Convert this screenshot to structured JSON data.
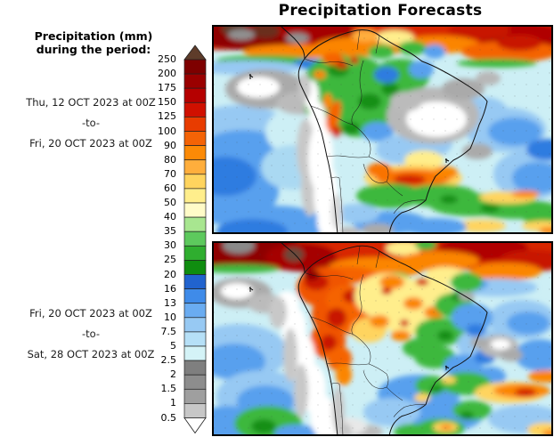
{
  "title": "Precipitation Forecasts",
  "legend": {
    "heading": [
      "Precipitation (mm)",
      "during the period:"
    ],
    "levels": [
      "250",
      "200",
      "175",
      "150",
      "125",
      "100",
      "90",
      "80",
      "70",
      "60",
      "50",
      "40",
      "35",
      "30",
      "25",
      "20",
      "16",
      "13",
      "10",
      "7.5",
      "5",
      "2.5",
      "2",
      "1.5",
      "1",
      "0.5"
    ],
    "band_colors": [
      "#5E3C2A",
      "#7E0000",
      "#9A0000",
      "#B50000",
      "#D01000",
      "#E83C00",
      "#F46306",
      "#FC8A06",
      "#FFAE3C",
      "#FFD45E",
      "#FFEE8C",
      "#FFFBC8",
      "#A8E690",
      "#5DC95D",
      "#2FAE2F",
      "#0F8D0F",
      "#2163CE",
      "#3F8BE9",
      "#6AACF1",
      "#97C9F3",
      "#B6E0F7",
      "#D4F3F7",
      "#7F7F7F",
      "#8D8D8D",
      "#9F9F9F",
      "#C7C7C7",
      "#FFFFFF"
    ]
  },
  "panels": [
    {
      "start": "Thu, 12 OCT 2023 at 00Z",
      "to": "-to-",
      "end": "Fri, 20 OCT 2023 at 00Z"
    },
    {
      "start": "Fri, 20 OCT 2023 at 00Z",
      "to": "-to-",
      "end": "Sat, 28 OCT 2023 at 00Z"
    }
  ],
  "chart_data": {
    "type": "heatmap",
    "title": "Precipitation Forecasts",
    "variable": "Precipitation (mm) during the period",
    "region": "South America and adjacent Pacific / Atlantic oceans",
    "colorbar": {
      "unit": "mm",
      "orientation": "vertical",
      "levels_mm": [
        0.5,
        1,
        1.5,
        2,
        2.5,
        5,
        7.5,
        10,
        13,
        16,
        20,
        25,
        30,
        35,
        40,
        50,
        60,
        70,
        80,
        90,
        100,
        125,
        150,
        175,
        200,
        250
      ],
      "band_colors_high_to_low": [
        "#5E3C2A",
        "#7E0000",
        "#9A0000",
        "#B50000",
        "#D01000",
        "#E83C00",
        "#F46306",
        "#FC8A06",
        "#FFAE3C",
        "#FFD45E",
        "#FFEE8C",
        "#FFFBC8",
        "#A8E690",
        "#5DC95D",
        "#2FAE2F",
        "#0F8D0F",
        "#2163CE",
        "#3F8BE9",
        "#6AACF1",
        "#97C9F3",
        "#B6E0F7",
        "#D4F3F7",
        "#7F7F7F",
        "#8D8D8D",
        "#9F9F9F",
        "#C7C7C7",
        "#FFFFFF"
      ],
      "open_ended_top": "above 250 mm (dark brown triangle)",
      "open_ended_bottom": "below 0.5 mm (white triangle)"
    },
    "panels": [
      {
        "period_start": "Thu, 12 OCT 2023 at 00Z",
        "period_end": "Fri, 20 OCT 2023 at 00Z",
        "notable_features": [
          "Heavy ITCZ rain band (100-250+ mm) across the far north and tropical Atlantic",
          "Widespread 20-60 mm (green) with embedded 10-20 mm (blue) over the Amazon basin",
          "Dry area below 2.5 mm (white/gray) over east-central Brazil and along the Peru/Chile coast and Andes",
          "Orange/red swath of 60-150 mm over Paraguay and southern Brazil",
          "Mostly 2.5-16 mm (light/medium blue) over open ocean areas"
        ]
      },
      {
        "period_start": "Fri, 20 OCT 2023 at 00Z",
        "period_end": "Sat, 28 OCT 2023 at 00Z",
        "notable_features": [
          "Intense ITCZ rain band (125-250+ mm) spanning the far north",
          "Very heavy totals (100-250 mm, orange/red) over Colombia, Ecuador, Peru and the western Amazon",
          "40-90 mm (yellow/orange) across the central Amazon with embedded red maxima",
          "10-35 mm (blue/green) over eastern and southern Brazil with a 60-125 mm streak offshore to the southeast",
          "Dry white/gray strip along the Andes and adjacent Pacific coast"
        ]
      }
    ]
  }
}
